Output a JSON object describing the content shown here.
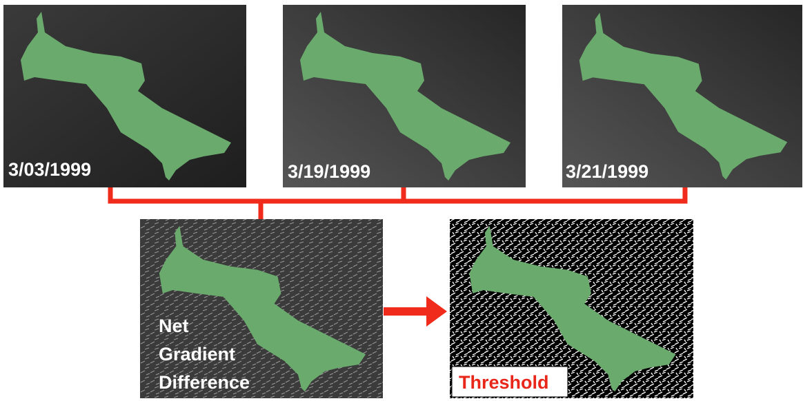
{
  "dates": [
    "3/03/1999",
    "3/19/1999",
    "3/21/1999"
  ],
  "net_gradient": {
    "lines": [
      "Net",
      "Gradient",
      "Difference"
    ]
  },
  "threshold": {
    "label": "Threshold"
  }
}
